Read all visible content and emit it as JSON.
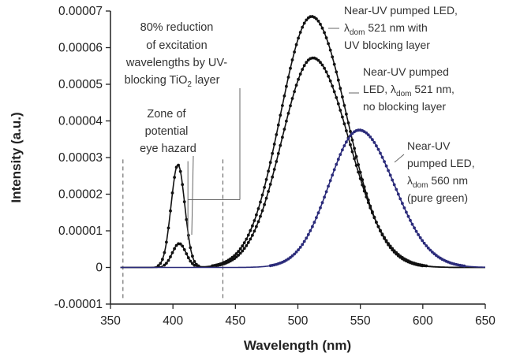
{
  "chart_data": {
    "type": "scatter",
    "xlabel": "Wavelength (nm)",
    "ylabel": "Intensity (a.u.)",
    "xlim": [
      350,
      650
    ],
    "ylim": [
      -1e-05,
      7e-05
    ],
    "x_ticks": [
      "350",
      "400",
      "450",
      "500",
      "550",
      "600",
      "650"
    ],
    "y_ticks": [
      "-0.00001",
      "0",
      "0.00001",
      "0.00002",
      "0.00003",
      "0.00004",
      "0.00005",
      "0.00006",
      "0.00007"
    ],
    "grid": false,
    "legend": "none",
    "series": [
      {
        "color": "#111111",
        "peaks": [
          {
            "center": 404,
            "height": 2.8e-05,
            "width_left": 5.5,
            "width_right": 5.5
          },
          {
            "center": 511,
            "height": 6.85e-05,
            "width_left": 25,
            "width_right": 28
          }
        ]
      },
      {
        "color": "#111111",
        "peaks": [
          {
            "center": 405,
            "height": 6.5e-06,
            "width_left": 5.5,
            "width_right": 5.5
          },
          {
            "center": 512,
            "height": 5.72e-05,
            "width_left": 25,
            "width_right": 29
          }
        ]
      },
      {
        "color": "#2b2b7a",
        "peaks": [
          {
            "center": 549,
            "height": 3.75e-05,
            "width_left": 24,
            "width_right": 28
          }
        ]
      }
    ],
    "zone_bounds": [
      360,
      440
    ],
    "annotations": {
      "reduction": [
        "80% reduction",
        "of excitation",
        "wavelengths by UV-",
        "blocking TiO",
        "2",
        " layer"
      ],
      "zone": [
        "Zone of",
        "potential",
        "eye hazard"
      ],
      "led_blocking": [
        "Near-UV pumped LED,",
        "λ",
        "dom",
        " 521 nm with",
        "UV blocking layer"
      ],
      "led_no_blocking": [
        "Near-UV pumped",
        "LED, λ",
        "dom",
        " 521 nm,",
        "no blocking layer"
      ],
      "led_green": [
        "Near-UV",
        "pumped LED,",
        "λ",
        "dom",
        " 560 nm",
        "(pure green)"
      ]
    }
  }
}
